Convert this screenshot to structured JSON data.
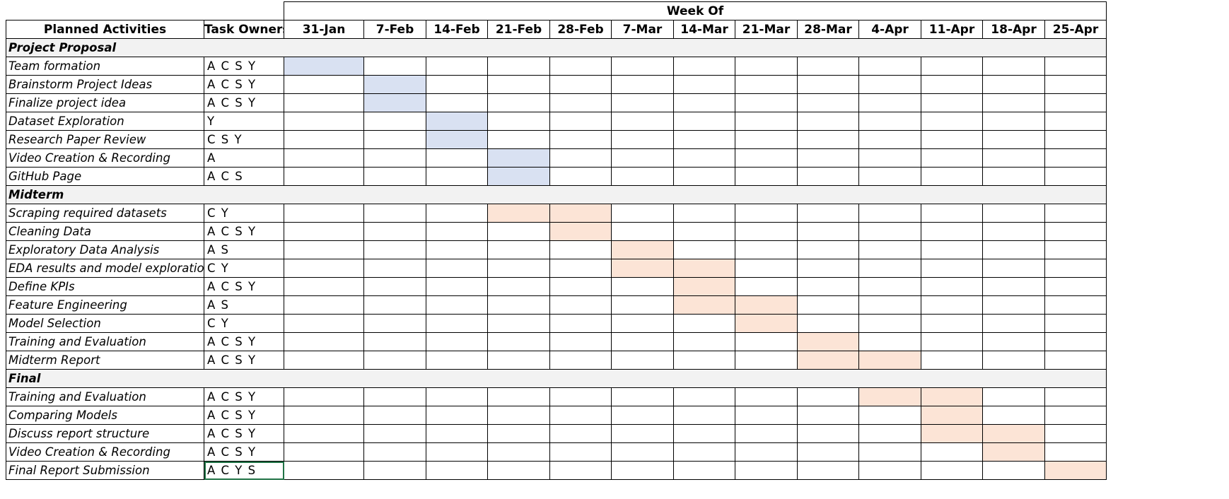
{
  "header": {
    "week_of": "Week Of",
    "activities_label": "Planned Activities",
    "owners_label": "Task Owners",
    "weeks": [
      "31-Jan",
      "7-Feb",
      "14-Feb",
      "21-Feb",
      "28-Feb",
      "7-Mar",
      "14-Mar",
      "21-Mar",
      "28-Mar",
      "4-Apr",
      "11-Apr",
      "18-Apr",
      "25-Apr"
    ]
  },
  "colors": {
    "proposal_fill": "#d9e1f2",
    "milestone_fill": "#fce4d6",
    "section_fill": "#f2f2f2",
    "selected_border": "#217346"
  },
  "sections": [
    {
      "title": "Project Proposal",
      "color": "blue",
      "tasks": [
        {
          "activity": "Team formation",
          "owners": "A C S Y",
          "weeks": [
            0
          ]
        },
        {
          "activity": "Brainstorm Project Ideas",
          "owners": "A C S Y",
          "weeks": [
            1
          ]
        },
        {
          "activity": "Finalize project idea",
          "owners": "A C S Y",
          "weeks": [
            1
          ]
        },
        {
          "activity": "Dataset Exploration",
          "owners": "Y",
          "weeks": [
            2
          ]
        },
        {
          "activity": "Research Paper Review",
          "owners": "C S Y",
          "weeks": [
            2
          ]
        },
        {
          "activity": "Video Creation & Recording",
          "owners": "A",
          "weeks": [
            3
          ]
        },
        {
          "activity": "GitHub Page",
          "owners": "A C S",
          "weeks": [
            3
          ]
        }
      ]
    },
    {
      "title": "Midterm",
      "color": "peach",
      "tasks": [
        {
          "activity": "Scraping required datasets",
          "owners": "C Y",
          "weeks": [
            3,
            4
          ]
        },
        {
          "activity": "Cleaning Data",
          "owners": "A C S Y",
          "weeks": [
            4
          ]
        },
        {
          "activity": "Exploratory Data Analysis",
          "owners": "A S",
          "weeks": [
            5
          ]
        },
        {
          "activity": "EDA results and model exploration",
          "owners": "C Y",
          "weeks": [
            5,
            6
          ]
        },
        {
          "activity": "Define KPIs",
          "owners": "A C S Y",
          "weeks": [
            6
          ]
        },
        {
          "activity": "Feature Engineering",
          "owners": "A S",
          "weeks": [
            6,
            7
          ]
        },
        {
          "activity": "Model Selection",
          "owners": "C Y",
          "weeks": [
            7
          ]
        },
        {
          "activity": "Training and Evaluation",
          "owners": "A C S Y",
          "weeks": [
            8
          ]
        },
        {
          "activity": "Midterm Report",
          "owners": "A C S Y",
          "weeks": [
            8,
            9
          ]
        }
      ]
    },
    {
      "title": "Final",
      "color": "peach",
      "tasks": [
        {
          "activity": "Training and Evaluation",
          "owners": "A C S Y",
          "weeks": [
            9,
            10
          ]
        },
        {
          "activity": "Comparing Models",
          "owners": "A C S Y",
          "weeks": [
            10
          ]
        },
        {
          "activity": "Discuss report structure",
          "owners": "A C S Y",
          "weeks": [
            10,
            11
          ]
        },
        {
          "activity": "Video Creation & Recording",
          "owners": "A C S Y",
          "weeks": [
            11
          ]
        },
        {
          "activity": "Final Report Submission",
          "owners": "A C Y S",
          "weeks": [
            12
          ],
          "selected": true
        }
      ]
    }
  ]
}
